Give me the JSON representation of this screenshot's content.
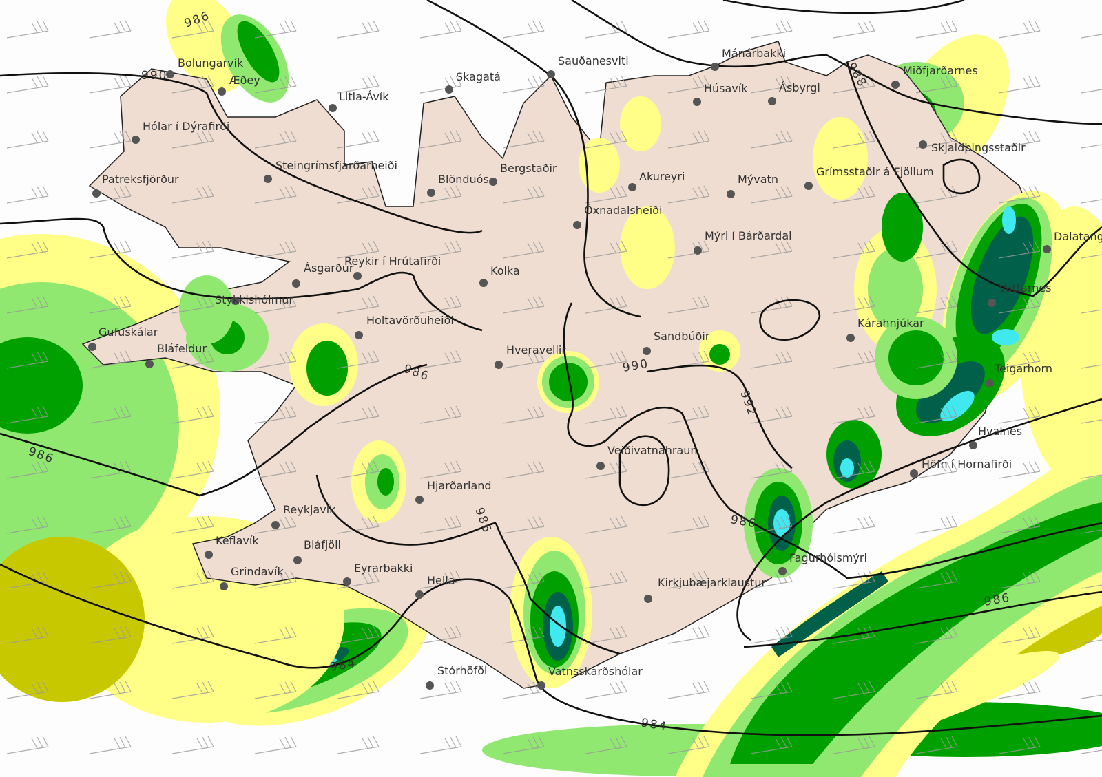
{
  "map": {
    "region": "Iceland",
    "colors": {
      "land": "#eeddd0",
      "sea": "#fdfdfd",
      "precip_very_light": "#ffff88",
      "precip_light": "#c8c800",
      "precip_moderate": "#90e870",
      "precip_heavy": "#00a000",
      "precip_very_heavy": "#00604a",
      "precip_extreme": "#40e8f0",
      "isobar": "#111111",
      "station": "#555555"
    },
    "isobar_labels": [
      "986",
      "984",
      "990",
      "992",
      "986",
      "986",
      "984",
      "986",
      "986",
      "988",
      "986",
      "990"
    ],
    "stations": [
      "Bolungarvík",
      "Æðey",
      "Litla-Ávík",
      "Skagatá",
      "Sauðanesviti",
      "Mánárbakki",
      "Miðfjarðarnes",
      "Húsavík",
      "Ásbyrgi",
      "Hólar í Dýrafirði",
      "Steingrímsfjarðarheiði",
      "Blönduós",
      "Bergstaðir",
      "Akureyri",
      "Mývatn",
      "Grímsstaðir á Fjöllum",
      "Skjaldþingsstaðir",
      "Patreksfjörður",
      "Öxnadalsheiði",
      "Mýri í Bárðardal",
      "Dalatangi",
      "Ásgarður",
      "Reykir í Hrútafirði",
      "Kolka",
      "Stykkishólmur",
      "Vattarnes",
      "Gufuskálar",
      "Bláfeldur",
      "Holtavörðuheiði",
      "Hveravellir",
      "Sandbúðir",
      "Kárahnjúkar",
      "Teigarhorn",
      "Hvalnes",
      "Veiðivatnahraun",
      "Höfn í Hornafirði",
      "Hjarðarland",
      "Reykjavík",
      "Keflavík",
      "Bláfjöll",
      "Grindavík",
      "Eyrarbakki",
      "Hella",
      "Fagurhólsmýri",
      "Kirkjubæjarklaustur",
      "Stórhöfði",
      "Vatnsskarðshólar"
    ]
  }
}
